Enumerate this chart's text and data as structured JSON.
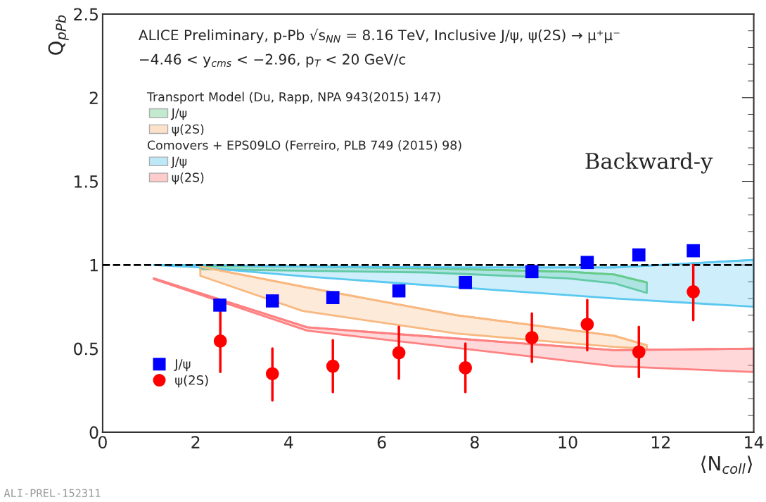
{
  "chart_data": {
    "type": "scatter",
    "xlabel": "⟨N$_{coll}$⟩",
    "ylabel": "Q$_{pPb}$",
    "xlim": [
      0,
      14
    ],
    "xticks": [
      0,
      2,
      4,
      6,
      8,
      10,
      12,
      14
    ],
    "ylim": [
      0,
      2.5
    ],
    "yticks": [
      0,
      0.5,
      1,
      1.5,
      2,
      2.5
    ],
    "grid": false,
    "legend": "left",
    "ref_lines": [
      {
        "axis": "y",
        "value": 1,
        "color": "#000000",
        "line_style": "dashed"
      }
    ],
    "annotations": [
      "ALICE Preliminary, p-Pb √s$_{NN}$ = 8.16 TeV, Inclusive J/ψ, ψ(2S) → μ⁺μ⁻",
      "−4.46 < y$_{cms}$ < −2.96, p$_{T}$ < 20 GeV/c",
      "Transport Model (Du, Rapp, NPA 943(2015) 147)",
      "Comovers + EPS09LO (Ferreiro, PLB 749 (2015) 98)",
      "Backward-y",
      "ALI-PREL-152311"
    ],
    "series": [
      {
        "name": "J/ψ",
        "type": "line",
        "color": "#66cc88",
        "x": [
          2.1,
          4.4,
          7.0,
          10.0,
          11.0,
          11.7
        ],
        "values": [
          0.995,
          0.99,
          0.98,
          0.96,
          0.943,
          0.896
        ],
        "lower": [
          0.975,
          0.965,
          0.955,
          0.92,
          0.89,
          0.833
        ],
        "upper": [
          0.995,
          0.99,
          0.98,
          0.96,
          0.943,
          0.896
        ]
      },
      {
        "name": "ψ(2S)",
        "type": "line",
        "color": "#f9b880",
        "x": [
          2.1,
          4.3,
          7.6,
          11.0,
          11.7
        ],
        "values": [
          0.99,
          0.87,
          0.7,
          0.577,
          0.52
        ],
        "lower": [
          0.935,
          0.725,
          0.59,
          0.51,
          0.5
        ],
        "upper": [
          0.99,
          0.87,
          0.7,
          0.577,
          0.52
        ]
      },
      {
        "name": "J/ψ",
        "type": "line",
        "color": "#5bc8f0",
        "x": [
          1.1,
          2.1,
          4.4,
          7.6,
          11.0,
          14.0
        ],
        "values": [
          1.0,
          1.0,
          0.99,
          0.985,
          0.985,
          1.03
        ],
        "lower": [
          1.0,
          0.985,
          0.93,
          0.867,
          0.8,
          0.75
        ],
        "upper": [
          1.0,
          1.0,
          0.99,
          0.985,
          0.985,
          1.03
        ]
      },
      {
        "name": "ψ(2S)",
        "type": "line",
        "color": "#ff8080",
        "x": [
          1.1,
          4.4,
          11.0,
          14.0
        ],
        "values": [
          0.92,
          0.627,
          0.49,
          0.5
        ],
        "lower": [
          0.915,
          0.607,
          0.395,
          0.36
        ],
        "upper": [
          0.92,
          0.627,
          0.49,
          0.5
        ]
      },
      {
        "name": "J/ψ",
        "type": "scatter",
        "marker": "square",
        "color": "#0000ff",
        "x": [
          2.52,
          3.65,
          4.95,
          6.37,
          7.8,
          9.23,
          10.42,
          11.53,
          12.7
        ],
        "values": [
          0.76,
          0.785,
          0.805,
          0.845,
          0.895,
          0.96,
          1.015,
          1.06,
          1.085
        ]
      },
      {
        "name": "ψ(2S)",
        "type": "scatter",
        "marker": "circle",
        "color": "#ff0000",
        "x": [
          2.53,
          3.65,
          4.95,
          6.37,
          7.8,
          9.23,
          10.42,
          11.53,
          12.7
        ],
        "values": [
          0.545,
          0.35,
          0.395,
          0.475,
          0.385,
          0.565,
          0.645,
          0.48,
          0.84
        ],
        "errors": [
          [
            0.36,
            0.73
          ],
          [
            0.19,
            0.5
          ],
          [
            0.24,
            0.55
          ],
          [
            0.32,
            0.63
          ],
          [
            0.24,
            0.53
          ],
          [
            0.42,
            0.71
          ],
          [
            0.49,
            0.79
          ],
          [
            0.33,
            0.63
          ],
          [
            0.67,
            1.0
          ]
        ]
      }
    ]
  }
}
